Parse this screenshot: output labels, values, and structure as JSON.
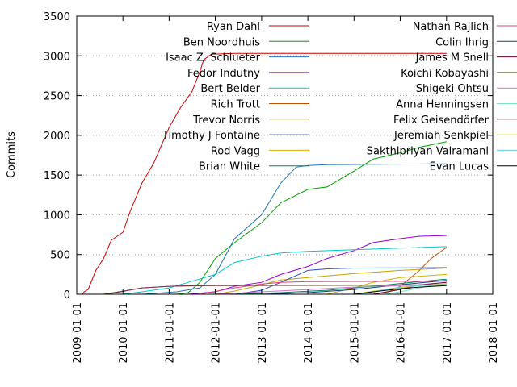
{
  "chart_data": {
    "type": "line",
    "title": "",
    "xlabel": "",
    "ylabel": "Commits",
    "xlim": [
      "2009-01-01",
      "2018-01-01"
    ],
    "ylim": [
      0,
      3500
    ],
    "x_ticks": [
      "2009-01-01",
      "2010-01-01",
      "2011-01-01",
      "2012-01-01",
      "2013-01-01",
      "2014-01-01",
      "2015-01-01",
      "2016-01-01",
      "2017-01-01",
      "2018-01-01"
    ],
    "y_ticks": [
      0,
      500,
      1000,
      1500,
      2000,
      2500,
      3000,
      3500
    ],
    "grid": "horizontal dotted",
    "legend_position": "top, two columns",
    "series": [
      {
        "name": "Ryan Dahl",
        "color": "#cc0000",
        "points": [
          [
            "2009-02-15",
            0
          ],
          [
            "2009-03-01",
            30
          ],
          [
            "2009-04-01",
            60
          ],
          [
            "2009-06-01",
            300
          ],
          [
            "2009-08-01",
            450
          ],
          [
            "2009-10-01",
            680
          ],
          [
            "2010-01-01",
            780
          ],
          [
            "2010-03-01",
            1050
          ],
          [
            "2010-06-01",
            1400
          ],
          [
            "2010-09-01",
            1650
          ],
          [
            "2011-01-01",
            2100
          ],
          [
            "2011-04-01",
            2350
          ],
          [
            "2011-07-01",
            2550
          ],
          [
            "2011-09-01",
            2800
          ],
          [
            "2011-10-01",
            2950
          ],
          [
            "2011-12-01",
            3020
          ],
          [
            "2012-06-01",
            3030
          ],
          [
            "2017-01-01",
            3030
          ]
        ]
      },
      {
        "name": "Ben Noordhuis",
        "color": "#00a000",
        "points": [
          [
            "2011-03-01",
            0
          ],
          [
            "2011-06-01",
            20
          ],
          [
            "2011-09-01",
            150
          ],
          [
            "2012-01-01",
            450
          ],
          [
            "2012-06-01",
            650
          ],
          [
            "2013-01-01",
            900
          ],
          [
            "2013-06-01",
            1150
          ],
          [
            "2014-01-01",
            1320
          ],
          [
            "2014-06-01",
            1350
          ],
          [
            "2015-01-01",
            1550
          ],
          [
            "2015-06-01",
            1700
          ],
          [
            "2016-01-01",
            1780
          ],
          [
            "2016-06-01",
            1850
          ],
          [
            "2017-01-01",
            1920
          ]
        ]
      },
      {
        "name": "Isaac Z. Schlueter",
        "color": "#1f77b4",
        "points": [
          [
            "2010-06-01",
            0
          ],
          [
            "2011-03-01",
            30
          ],
          [
            "2011-09-01",
            80
          ],
          [
            "2012-01-01",
            250
          ],
          [
            "2012-06-01",
            700
          ],
          [
            "2013-01-01",
            1000
          ],
          [
            "2013-06-01",
            1400
          ],
          [
            "2013-10-01",
            1600
          ],
          [
            "2014-01-01",
            1620
          ],
          [
            "2014-06-01",
            1630
          ],
          [
            "2015-06-01",
            1635
          ],
          [
            "2017-01-01",
            1640
          ]
        ]
      },
      {
        "name": "Fedor Indutny",
        "color": "#9400d3",
        "points": [
          [
            "2011-06-01",
            0
          ],
          [
            "2012-01-01",
            30
          ],
          [
            "2012-06-01",
            100
          ],
          [
            "2013-01-01",
            150
          ],
          [
            "2013-06-01",
            250
          ],
          [
            "2014-01-01",
            350
          ],
          [
            "2014-06-01",
            450
          ],
          [
            "2015-01-01",
            550
          ],
          [
            "2015-06-01",
            650
          ],
          [
            "2016-01-01",
            700
          ],
          [
            "2016-06-01",
            730
          ],
          [
            "2017-01-01",
            740
          ]
        ]
      },
      {
        "name": "Bert Belder",
        "color": "#00c8c8",
        "points": [
          [
            "2010-01-01",
            0
          ],
          [
            "2010-06-01",
            30
          ],
          [
            "2011-01-01",
            80
          ],
          [
            "2011-06-01",
            150
          ],
          [
            "2012-01-01",
            250
          ],
          [
            "2012-06-01",
            400
          ],
          [
            "2013-01-01",
            480
          ],
          [
            "2013-06-01",
            520
          ],
          [
            "2014-01-01",
            540
          ],
          [
            "2015-01-01",
            560
          ],
          [
            "2016-01-01",
            580
          ],
          [
            "2017-01-01",
            600
          ]
        ]
      },
      {
        "name": "Rich Trott",
        "color": "#c05000",
        "points": [
          [
            "2015-06-01",
            0
          ],
          [
            "2015-10-01",
            30
          ],
          [
            "2016-01-01",
            100
          ],
          [
            "2016-06-01",
            300
          ],
          [
            "2016-09-01",
            450
          ],
          [
            "2017-01-01",
            590
          ]
        ]
      },
      {
        "name": "Trevor Norris",
        "color": "#c8a000",
        "points": [
          [
            "2012-01-01",
            0
          ],
          [
            "2012-06-01",
            40
          ],
          [
            "2013-01-01",
            120
          ],
          [
            "2013-06-01",
            180
          ],
          [
            "2014-01-01",
            210
          ],
          [
            "2015-01-01",
            260
          ],
          [
            "2016-01-01",
            300
          ],
          [
            "2017-01-01",
            330
          ]
        ]
      },
      {
        "name": "Timothy J Fontaine",
        "color": "#3050c0",
        "points": [
          [
            "2012-06-01",
            0
          ],
          [
            "2013-01-01",
            50
          ],
          [
            "2013-06-01",
            150
          ],
          [
            "2014-01-01",
            300
          ],
          [
            "2014-06-01",
            320
          ],
          [
            "2015-01-01",
            330
          ],
          [
            "2017-01-01",
            335
          ]
        ]
      },
      {
        "name": "Rod Vagg",
        "color": "#d4b000",
        "points": [
          [
            "2014-06-01",
            0
          ],
          [
            "2015-01-01",
            80
          ],
          [
            "2015-06-01",
            150
          ],
          [
            "2016-01-01",
            210
          ],
          [
            "2017-01-01",
            250
          ]
        ]
      },
      {
        "name": "Brian White",
        "color": "#008060",
        "points": [
          [
            "2012-06-01",
            0
          ],
          [
            "2013-06-01",
            20
          ],
          [
            "2014-06-01",
            50
          ],
          [
            "2015-06-01",
            100
          ],
          [
            "2016-06-01",
            160
          ],
          [
            "2017-01-01",
            190
          ]
        ]
      },
      {
        "name": "Nathan Rajlich",
        "color": "#e04080",
        "points": [
          [
            "2011-09-01",
            0
          ],
          [
            "2012-06-01",
            80
          ],
          [
            "2013-01-01",
            130
          ],
          [
            "2013-06-01",
            150
          ],
          [
            "2014-01-01",
            160
          ],
          [
            "2017-01-01",
            165
          ]
        ]
      },
      {
        "name": "Colin Ihrig",
        "color": "#104080",
        "points": [
          [
            "2013-01-01",
            0
          ],
          [
            "2014-01-01",
            20
          ],
          [
            "2015-01-01",
            60
          ],
          [
            "2016-01-01",
            120
          ],
          [
            "2017-01-01",
            175
          ]
        ]
      },
      {
        "name": "James M Snell",
        "color": "#600030",
        "points": [
          [
            "2015-06-01",
            0
          ],
          [
            "2016-01-01",
            60
          ],
          [
            "2016-06-01",
            120
          ],
          [
            "2017-01-01",
            150
          ]
        ]
      },
      {
        "name": "Koichi Kobayashi",
        "color": "#406000",
        "points": [
          [
            "2009-08-01",
            0
          ],
          [
            "2010-01-01",
            40
          ],
          [
            "2010-06-01",
            80
          ],
          [
            "2011-01-01",
            100
          ],
          [
            "2012-01-01",
            110
          ],
          [
            "2017-01-01",
            115
          ]
        ]
      },
      {
        "name": "Shigeki Ohtsu",
        "color": "#d070d0",
        "points": [
          [
            "2012-01-01",
            0
          ],
          [
            "2013-01-01",
            30
          ],
          [
            "2014-01-01",
            60
          ],
          [
            "2015-01-01",
            90
          ],
          [
            "2016-01-01",
            110
          ],
          [
            "2017-01-01",
            130
          ]
        ]
      },
      {
        "name": "Anna Henningsen",
        "color": "#80e0c0",
        "points": [
          [
            "2015-09-01",
            0
          ],
          [
            "2016-01-01",
            30
          ],
          [
            "2016-06-01",
            80
          ],
          [
            "2017-01-01",
            140
          ]
        ]
      },
      {
        "name": "Felix Geisendörfer",
        "color": "#803060",
        "points": [
          [
            "2009-09-01",
            0
          ],
          [
            "2010-06-01",
            80
          ],
          [
            "2011-01-01",
            100
          ],
          [
            "2011-06-01",
            110
          ],
          [
            "2017-01-01",
            120
          ]
        ]
      },
      {
        "name": "Jeremiah Senkpiel",
        "color": "#e0e000",
        "points": [
          [
            "2015-01-01",
            0
          ],
          [
            "2015-06-01",
            40
          ],
          [
            "2016-01-01",
            80
          ],
          [
            "2016-06-01",
            110
          ],
          [
            "2017-01-01",
            130
          ]
        ]
      },
      {
        "name": "Sakthipriyan Vairamani",
        "color": "#60d0e0",
        "points": [
          [
            "2015-03-01",
            0
          ],
          [
            "2015-09-01",
            60
          ],
          [
            "2016-01-01",
            90
          ],
          [
            "2016-06-01",
            110
          ],
          [
            "2017-01-01",
            125
          ]
        ]
      },
      {
        "name": "Evan Lucas",
        "color": "#000000",
        "points": [
          [
            "2015-01-01",
            0
          ],
          [
            "2015-06-01",
            30
          ],
          [
            "2016-01-01",
            70
          ],
          [
            "2016-06-01",
            90
          ],
          [
            "2017-01-01",
            110
          ]
        ]
      }
    ]
  }
}
